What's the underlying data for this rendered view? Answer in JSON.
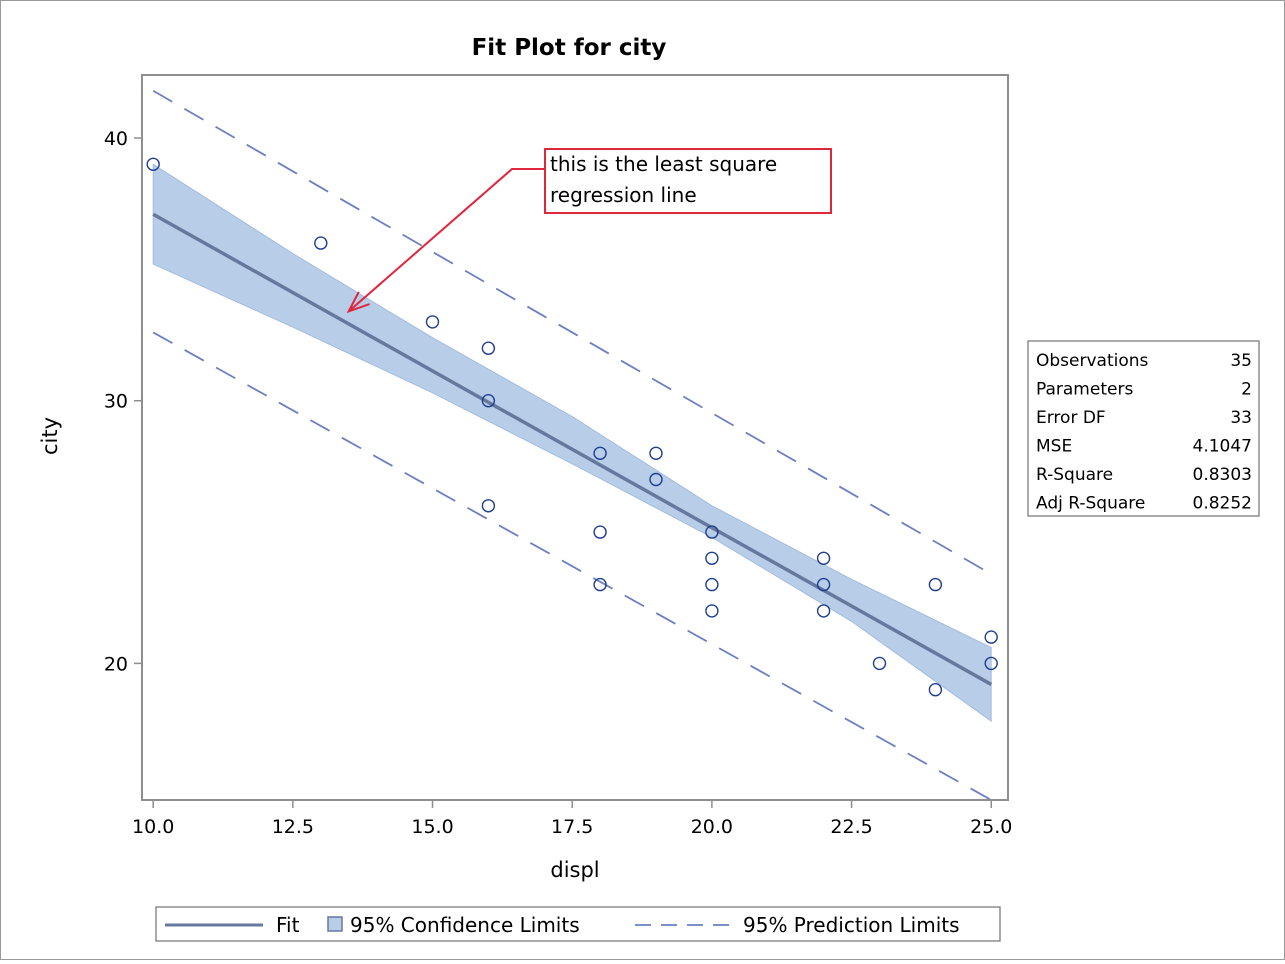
{
  "chart_data": {
    "type": "scatter",
    "title": "Fit Plot for city",
    "xlabel": "displ",
    "ylabel": "city",
    "xlim": [
      9.8,
      25.3
    ],
    "ylim": [
      14.8,
      42.4
    ],
    "x_ticks": [
      10.0,
      12.5,
      15.0,
      17.5,
      20.0,
      22.5,
      25.0
    ],
    "x_tick_labels": [
      "10.0",
      "12.5",
      "15.0",
      "17.5",
      "20.0",
      "22.5",
      "25.0"
    ],
    "y_ticks": [
      20,
      30,
      40
    ],
    "y_tick_labels": [
      "20",
      "30",
      "40"
    ],
    "grid": false,
    "points": [
      {
        "x": 10,
        "y": 39
      },
      {
        "x": 13,
        "y": 36
      },
      {
        "x": 15,
        "y": 33
      },
      {
        "x": 16,
        "y": 32
      },
      {
        "x": 16,
        "y": 30
      },
      {
        "x": 16,
        "y": 26
      },
      {
        "x": 18,
        "y": 28
      },
      {
        "x": 18,
        "y": 25
      },
      {
        "x": 18,
        "y": 23
      },
      {
        "x": 19,
        "y": 28
      },
      {
        "x": 19,
        "y": 27
      },
      {
        "x": 20,
        "y": 25
      },
      {
        "x": 20,
        "y": 24
      },
      {
        "x": 20,
        "y": 23
      },
      {
        "x": 20,
        "y": 22
      },
      {
        "x": 22,
        "y": 24
      },
      {
        "x": 22,
        "y": 23
      },
      {
        "x": 22,
        "y": 22
      },
      {
        "x": 23,
        "y": 20
      },
      {
        "x": 24,
        "y": 23
      },
      {
        "x": 24,
        "y": 19
      },
      {
        "x": 25,
        "y": 21
      },
      {
        "x": 25,
        "y": 20
      }
    ],
    "fit_line": {
      "x": [
        10,
        25
      ],
      "y": [
        37.1,
        19.2
      ]
    },
    "confidence_band": {
      "x": [
        10,
        12.5,
        15,
        17.5,
        20,
        22.5,
        25
      ],
      "lower": [
        35.2,
        32.8,
        30.3,
        27.6,
        24.8,
        21.6,
        17.8
      ],
      "upper": [
        39.0,
        35.6,
        32.4,
        29.4,
        26.0,
        23.2,
        20.6
      ]
    },
    "prediction_lower": {
      "x": [
        10,
        25
      ],
      "y": [
        32.6,
        14.8
      ]
    },
    "prediction_upper": {
      "x": [
        10,
        25
      ],
      "y": [
        41.8,
        23.4
      ]
    },
    "annotation": {
      "lines": [
        "this is the least square",
        "regression line"
      ],
      "arrow_target": {
        "x": 13.5,
        "y": 33.4
      }
    },
    "stats": [
      {
        "label": "Observations",
        "value": "35"
      },
      {
        "label": "Parameters",
        "value": "2"
      },
      {
        "label": "Error DF",
        "value": "33"
      },
      {
        "label": "MSE",
        "value": "4.1047"
      },
      {
        "label": "R-Square",
        "value": "0.8303"
      },
      {
        "label": "Adj R-Square",
        "value": "0.8252"
      }
    ],
    "legend": {
      "placement": "bottom",
      "entries": [
        {
          "label": "Fit",
          "symbol": "solid-line"
        },
        {
          "label": "95% Confidence Limits",
          "symbol": "filled-box"
        },
        {
          "label": "95% Prediction Limits",
          "symbol": "dashed-line"
        }
      ]
    },
    "colors": {
      "fit": "#66789c",
      "band_fill": "#b8cde8",
      "band_edge": "#a3bce0",
      "prediction": "#6b7fc2",
      "points": "#1f3f8f",
      "annotation": "#e0263c",
      "frame": "#8e8e8e"
    }
  }
}
